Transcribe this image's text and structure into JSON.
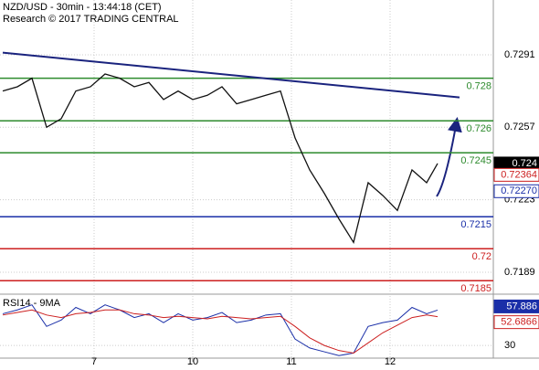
{
  "chart_data": {
    "type": "line",
    "title": "NZD/USD - 30min - 13:44:18 (CET)",
    "subtitle": "Research © 2017 TRADING CENTRAL",
    "x": [
      0,
      4,
      8,
      12,
      16,
      20,
      24,
      28,
      32,
      36,
      40,
      44,
      48,
      52,
      56,
      60,
      64,
      68,
      72,
      76,
      80,
      84,
      88,
      92,
      96,
      100,
      104,
      108,
      112,
      116,
      119
    ],
    "series": [
      {
        "name": "NZD/USD",
        "color": "#111111",
        "values": [
          0.7274,
          0.7276,
          0.728,
          0.7257,
          0.7261,
          0.7274,
          0.7276,
          0.7282,
          0.728,
          0.7276,
          0.7278,
          0.727,
          0.7274,
          0.727,
          0.7272,
          0.7276,
          0.7268,
          0.727,
          0.7272,
          0.7274,
          0.7252,
          0.7237,
          0.7226,
          0.7214,
          0.7203,
          0.7231,
          0.7225,
          0.7218,
          0.7237,
          0.7231,
          0.724
        ]
      }
    ],
    "trendline": {
      "x": [
        0,
        125
      ],
      "values": [
        0.7292,
        0.7271
      ],
      "color": "#1a237e"
    },
    "levels": [
      {
        "value": 0.728,
        "color": "#2e8b2e"
      },
      {
        "value": 0.726,
        "color": "#2e8b2e"
      },
      {
        "value": 0.7245,
        "color": "#2e8b2e"
      },
      {
        "value": 0.7215,
        "color": "#1a2fa8"
      },
      {
        "value": 0.72,
        "color": "#cc1f1f"
      },
      {
        "value": 0.7185,
        "color": "#cc1f1f"
      }
    ],
    "price_markers": [
      {
        "value": 0.724,
        "label": "0.724",
        "color": "#000000"
      },
      {
        "value": 0.72364,
        "label": "0.72364",
        "color": "#cc1f1f"
      },
      {
        "value": 0.7227,
        "label": "0.72270",
        "color": "#1a2fa8"
      }
    ],
    "xlim": [
      -0.75,
      134.25
    ],
    "xticks": [
      {
        "value": 25,
        "label": "7"
      },
      {
        "value": 52,
        "label": "10"
      },
      {
        "value": 79,
        "label": "11"
      },
      {
        "value": 106,
        "label": "12"
      }
    ],
    "ylim": [
      0.71787,
      0.73167
    ],
    "yticks": [
      0.7291,
      0.7257,
      0.7223,
      0.7189
    ],
    "rsi": {
      "title": "RSI14 - 9MA",
      "ylim": [
        20,
        69
      ],
      "yticks": [
        30
      ],
      "series": [
        {
          "name": "RSI14",
          "color": "#1a2fa8",
          "values": [
            55,
            58,
            62,
            45,
            50,
            60,
            55,
            62,
            58,
            52,
            55,
            48,
            55,
            50,
            52,
            56,
            48,
            50,
            54,
            55,
            35,
            28,
            25,
            22,
            24,
            45,
            48,
            50,
            60,
            55,
            57.886
          ],
          "value_label": "57.886"
        },
        {
          "name": "9MA",
          "color": "#cc1f1f",
          "values": [
            54,
            56,
            58,
            54,
            52,
            55,
            56,
            58,
            58,
            55,
            54,
            52,
            53,
            52,
            51,
            53,
            52,
            51,
            52,
            53,
            45,
            36,
            30,
            26,
            24,
            32,
            40,
            46,
            52,
            54,
            52.6866
          ],
          "value_label": "52.6866"
        }
      ]
    }
  }
}
